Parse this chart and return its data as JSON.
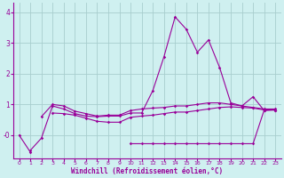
{
  "xlabel": "Windchill (Refroidissement éolien,°C)",
  "xlim": [
    -0.5,
    23.5
  ],
  "ylim": [
    -0.75,
    4.3
  ],
  "xticks": [
    0,
    1,
    2,
    3,
    4,
    5,
    6,
    7,
    8,
    9,
    10,
    11,
    12,
    13,
    14,
    15,
    16,
    17,
    18,
    19,
    20,
    21,
    22,
    23
  ],
  "yticks": [
    -0.0,
    1.0,
    2.0,
    3.0,
    4.0
  ],
  "ytick_labels": [
    "-0",
    "1",
    "2",
    "3",
    "4"
  ],
  "background_color": "#cff0f0",
  "grid_color": "#a8cece",
  "line_color": "#990099",
  "series": [
    [
      0,
      -0.55,
      null,
      null,
      null,
      null,
      null,
      null,
      null,
      null,
      null,
      null,
      null,
      null,
      null,
      null,
      null,
      null,
      null,
      null,
      null,
      null,
      null,
      null
    ],
    [
      null,
      -0.5,
      -0.1,
      0.95,
      0.85,
      0.7,
      0.62,
      0.6,
      0.62,
      0.62,
      0.72,
      0.72,
      1.45,
      2.55,
      3.85,
      3.45,
      2.7,
      3.1,
      2.2,
      1.05,
      0.95,
      1.25,
      0.8,
      0.82
    ],
    [
      null,
      null,
      0.6,
      1.0,
      0.95,
      0.78,
      0.7,
      0.62,
      0.65,
      0.65,
      0.8,
      0.85,
      0.88,
      0.9,
      0.95,
      0.95,
      1.0,
      1.05,
      1.05,
      1.0,
      0.95,
      0.9,
      0.85,
      0.85
    ],
    [
      null,
      null,
      null,
      0.72,
      0.7,
      0.65,
      0.55,
      0.45,
      0.42,
      0.42,
      0.58,
      0.62,
      0.65,
      0.7,
      0.75,
      0.75,
      0.8,
      0.85,
      0.9,
      0.92,
      0.9,
      0.88,
      0.82,
      0.82
    ],
    [
      null,
      null,
      null,
      null,
      null,
      null,
      null,
      null,
      null,
      null,
      -0.28,
      -0.28,
      -0.28,
      -0.28,
      -0.28,
      -0.28,
      -0.28,
      -0.28,
      -0.28,
      -0.28,
      -0.28,
      -0.28,
      0.82,
      0.82
    ]
  ]
}
